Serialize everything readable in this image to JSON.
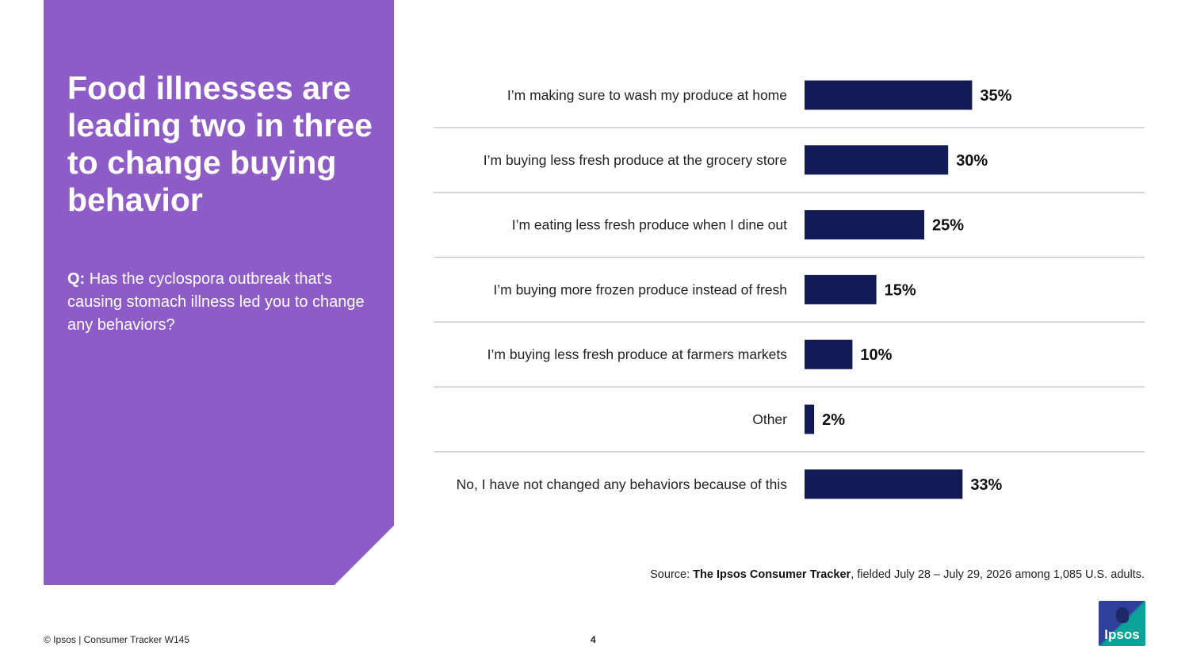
{
  "panel": {
    "title": "Food illnesses are leading two in three to change buying behavior",
    "question_prefix": "Q:",
    "question": "Has the cyclospora outbreak that's causing stomach illness led you to change any behaviors?"
  },
  "colors": {
    "panel": "#8e5cc6",
    "bar": "#131b57",
    "separator": "#c9c9c9"
  },
  "chart_data": {
    "type": "bar",
    "orientation": "horizontal",
    "categories": [
      "I’m making sure to wash my produce at home",
      "I’m buying less fresh produce at the grocery store",
      "I’m eating less fresh produce when I dine out",
      "I’m buying more frozen produce instead of fresh",
      "I’m buying less fresh produce at farmers markets",
      "Other",
      "No, I have not changed any behaviors because of this"
    ],
    "values": [
      35,
      30,
      25,
      15,
      10,
      2,
      33
    ],
    "value_labels": [
      "35%",
      "30%",
      "25%",
      "15%",
      "10%",
      "2%",
      "33%"
    ],
    "unit": "%",
    "xlim": [
      0,
      100
    ],
    "grid": false,
    "legend": "none"
  },
  "source": {
    "prefix": "Source:",
    "name": "The Ipsos Consumer Tracker",
    "rest": ", fielded July 28 – July 29, 2026 among 1,085 U.S. adults."
  },
  "footer": {
    "left": "© Ipsos | Consumer Tracker W145",
    "page": "4"
  },
  "logo": {
    "text": "Ipsos"
  }
}
